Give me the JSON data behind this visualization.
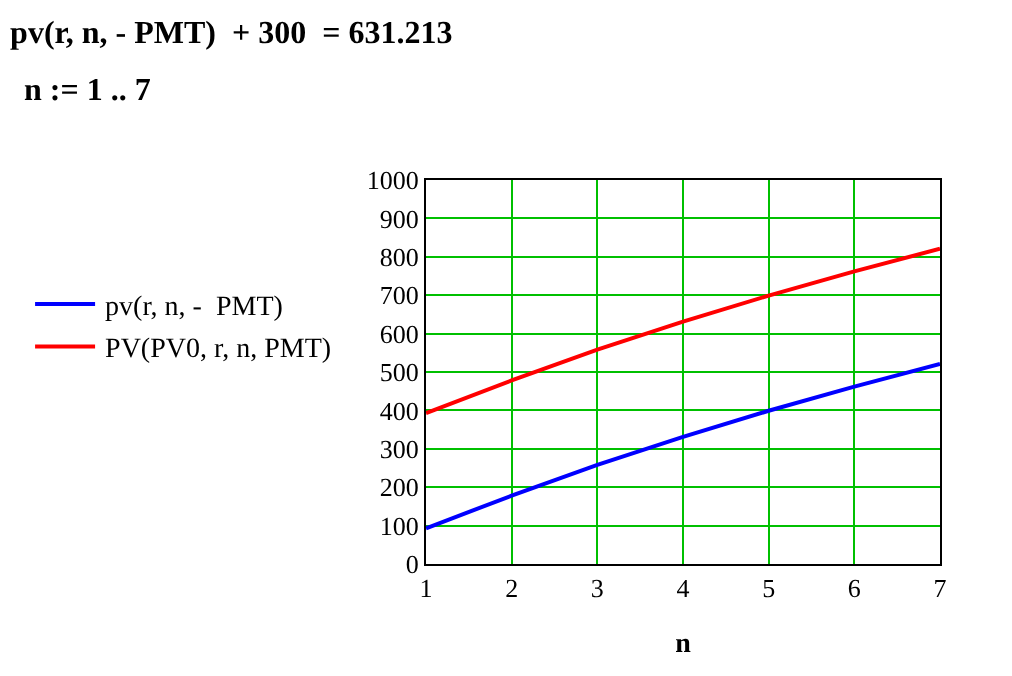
{
  "chart_data": {
    "type": "line",
    "title": "pv(r, n, - PMT)  + 300  = 631.213",
    "annotations": [
      "n := 1 .. 7"
    ],
    "xlabel": "n",
    "x": [
      1,
      2,
      3,
      4,
      5,
      6,
      7
    ],
    "series": [
      {
        "name": "pv(r, n, -  PMT)",
        "color": "#0000ff",
        "values": [
          93,
          178,
          258,
          331,
          399,
          462,
          521
        ]
      },
      {
        "name": "PV(PV0, r, n, PMT)",
        "color": "#ff0000",
        "values": [
          393,
          478,
          558,
          631,
          699,
          762,
          821
        ]
      }
    ],
    "xlim": [
      1,
      7
    ],
    "xticks": [
      1,
      2,
      3,
      4,
      5,
      6,
      7
    ],
    "ylim": [
      0,
      1000
    ],
    "yticks": [
      0,
      100,
      200,
      300,
      400,
      500,
      600,
      700,
      800,
      900,
      1000
    ],
    "grid": true,
    "legend": "left",
    "marker": "none",
    "line_style": "solid"
  }
}
